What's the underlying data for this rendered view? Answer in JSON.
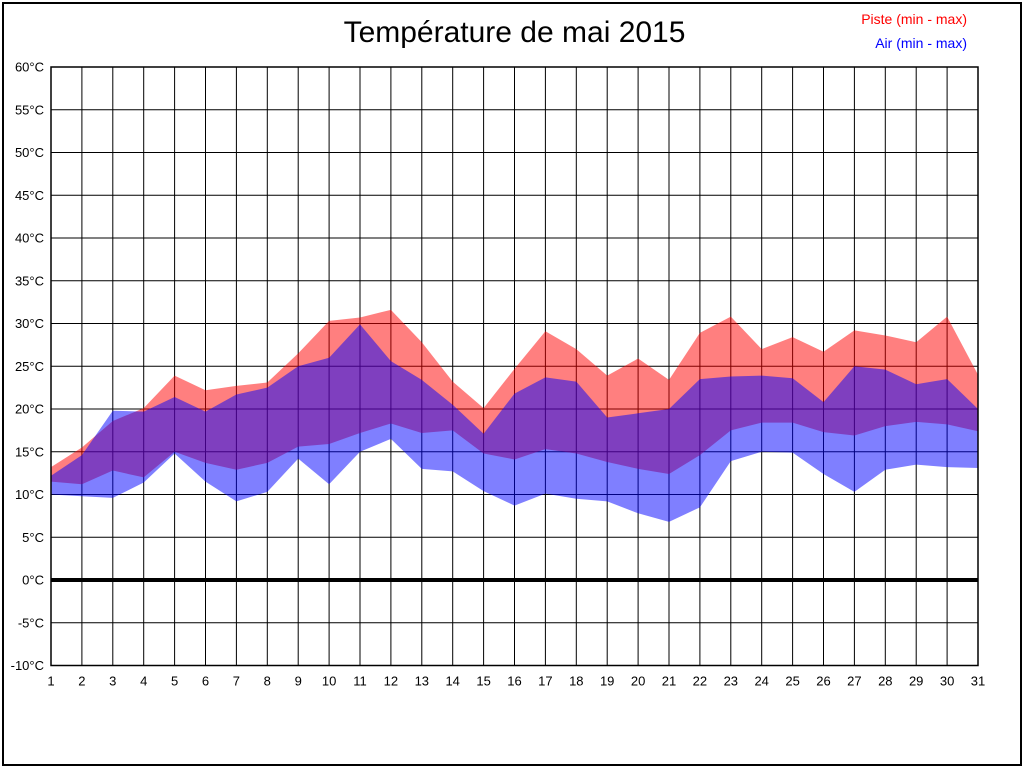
{
  "title": "Température de mai 2015",
  "legend": {
    "piste": {
      "label": "Piste (min - max)",
      "color": "#ff0000"
    },
    "air": {
      "label": "Air (min - max)",
      "color": "#0000ff"
    }
  },
  "chart_data": {
    "type": "area",
    "title": "Température de mai 2015",
    "xlabel": "",
    "ylabel": "",
    "x": [
      1,
      2,
      3,
      4,
      5,
      6,
      7,
      8,
      9,
      10,
      11,
      12,
      13,
      14,
      15,
      16,
      17,
      18,
      19,
      20,
      21,
      22,
      23,
      24,
      25,
      26,
      27,
      28,
      29,
      30,
      31
    ],
    "x_tick_labels": [
      "1",
      "2",
      "3",
      "4",
      "5",
      "6",
      "7",
      "8",
      "9",
      "10",
      "11",
      "12",
      "13",
      "14",
      "15",
      "16",
      "17",
      "18",
      "19",
      "20",
      "21",
      "22",
      "23",
      "24",
      "25",
      "26",
      "27",
      "28",
      "29",
      "30",
      "31"
    ],
    "ylim": [
      -10,
      60
    ],
    "y_ticks": [
      {
        "v": 60,
        "label": "60°C"
      },
      {
        "v": 55,
        "label": "55°C"
      },
      {
        "v": 50,
        "label": "50°C"
      },
      {
        "v": 45,
        "label": "45°C"
      },
      {
        "v": 40,
        "label": "40°C"
      },
      {
        "v": 35,
        "label": "35°C"
      },
      {
        "v": 30,
        "label": "30°C"
      },
      {
        "v": 25,
        "label": "25°C"
      },
      {
        "v": 20,
        "label": "20°C"
      },
      {
        "v": 15,
        "label": "15°C"
      },
      {
        "v": 10,
        "label": "10°C"
      },
      {
        "v": 5,
        "label": "5°C"
      },
      {
        "v": 0,
        "label": "0°C"
      },
      {
        "v": -5,
        "label": "-5°C"
      },
      {
        "v": -10,
        "label": "-10°C"
      }
    ],
    "grid": true,
    "zero_line": {
      "value": 0,
      "color": "#000000",
      "width": 4
    },
    "legend_position": "top-right",
    "series": [
      {
        "name": "Piste (min - max)",
        "kind": "min-max-band",
        "fill": "rgba(255,0,0,0.5)",
        "min": [
          11.5,
          11.2,
          12.8,
          12.0,
          15.0,
          13.7,
          12.9,
          13.7,
          15.6,
          15.9,
          17.2,
          18.3,
          17.2,
          17.5,
          14.8,
          14.1,
          15.3,
          14.8,
          13.8,
          13.0,
          12.4,
          14.6,
          17.5,
          18.4,
          18.4,
          17.3,
          16.9,
          18.0,
          18.5,
          18.2,
          17.4
        ],
        "max": [
          13.2,
          15.5,
          18.6,
          20.1,
          23.9,
          22.2,
          22.7,
          23.1,
          26.5,
          30.3,
          30.7,
          31.6,
          27.8,
          23.2,
          20.1,
          24.7,
          29.1,
          27.0,
          23.9,
          25.9,
          23.4,
          28.9,
          30.8,
          27.0,
          28.4,
          26.7,
          29.2,
          28.6,
          27.8,
          30.8,
          24.0
        ]
      },
      {
        "name": "Air (min - max)",
        "kind": "min-max-band",
        "fill": "rgba(0,0,255,0.5)",
        "min": [
          10.0,
          9.8,
          9.6,
          11.4,
          14.8,
          11.5,
          9.2,
          10.3,
          14.2,
          11.2,
          15.0,
          16.5,
          13.0,
          12.7,
          10.4,
          8.7,
          10.1,
          9.5,
          9.2,
          7.8,
          6.8,
          8.5,
          13.9,
          15.0,
          14.9,
          12.4,
          10.3,
          12.9,
          13.5,
          13.2,
          13.1
        ],
        "max": [
          12.2,
          14.6,
          19.8,
          19.7,
          21.4,
          19.7,
          21.7,
          22.5,
          25.0,
          26.0,
          29.9,
          25.6,
          23.4,
          20.5,
          17.1,
          21.8,
          23.7,
          23.2,
          19.0,
          19.5,
          20.0,
          23.5,
          23.8,
          23.9,
          23.6,
          20.8,
          25.0,
          24.6,
          22.9,
          23.5,
          20.0
        ]
      }
    ],
    "colors": {
      "grid": "#000000",
      "frame": "#000000",
      "band_overlap_appearance": "#7f3fbf",
      "piste_pure_appearance": "#ff7f7f",
      "air_pure_appearance": "#7f7fff"
    }
  }
}
